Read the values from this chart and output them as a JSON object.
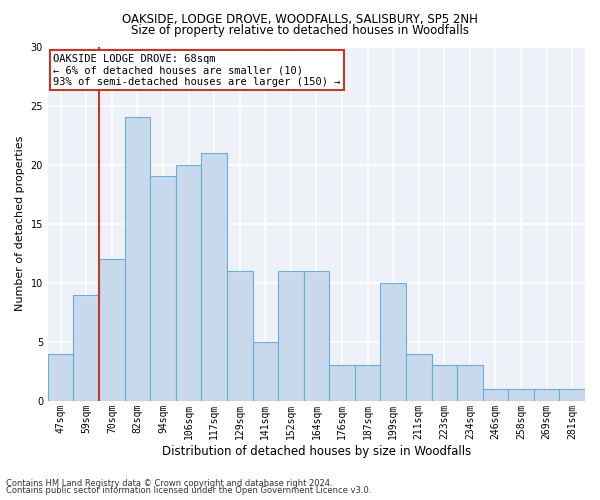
{
  "title1": "OAKSIDE, LODGE DROVE, WOODFALLS, SALISBURY, SP5 2NH",
  "title2": "Size of property relative to detached houses in Woodfalls",
  "xlabel": "Distribution of detached houses by size in Woodfalls",
  "ylabel": "Number of detached properties",
  "footnote1": "Contains HM Land Registry data © Crown copyright and database right 2024.",
  "footnote2": "Contains public sector information licensed under the Open Government Licence v3.0.",
  "bar_values": [
    4,
    9,
    12,
    24,
    19,
    20,
    21,
    11,
    5,
    11,
    11,
    3,
    3,
    10,
    4,
    3,
    3,
    1,
    1,
    1,
    1
  ],
  "bin_labels": [
    "47sqm",
    "59sqm",
    "70sqm",
    "82sqm",
    "94sqm",
    "106sqm",
    "117sqm",
    "129sqm",
    "141sqm",
    "152sqm",
    "164sqm",
    "176sqm",
    "187sqm",
    "199sqm",
    "211sqm",
    "223sqm",
    "234sqm",
    "246sqm",
    "258sqm",
    "269sqm",
    "281sqm"
  ],
  "bar_color": "#c8d9ed",
  "bar_edge_color": "#6aaed6",
  "bg_color": "#eef2f8",
  "grid_color": "#ffffff",
  "vline_color": "#c0392b",
  "vline_index": 2,
  "annotation_line1": "OAKSIDE LODGE DROVE: 68sqm",
  "annotation_line2": "← 6% of detached houses are smaller (10)",
  "annotation_line3": "93% of semi-detached houses are larger (150) →",
  "annotation_box_color": "#c0392b",
  "ylim": [
    0,
    30
  ],
  "yticks": [
    0,
    5,
    10,
    15,
    20,
    25,
    30
  ],
  "title1_fontsize": 8.5,
  "title2_fontsize": 8.5,
  "ylabel_fontsize": 8,
  "xlabel_fontsize": 8.5,
  "tick_fontsize": 7,
  "annot_fontsize": 7.5,
  "footnote_fontsize": 6
}
